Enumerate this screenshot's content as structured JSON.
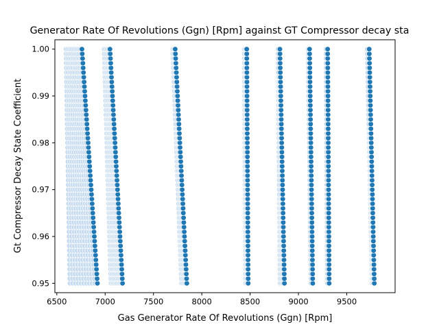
{
  "chart_data": {
    "type": "scatter",
    "title": "Generator Rate Of Revolutions (Ggn) [Rpm] against GT Compressor decay sta",
    "xlabel": "Gas Generator Rate Of Revolutions (Ggn) [Rpm]",
    "ylabel": "Gt Compressor Decay State Coefficient",
    "xlim": [
      6480,
      10000
    ],
    "ylim": [
      0.948,
      1.002
    ],
    "xticks": [
      6500,
      7000,
      7500,
      8000,
      8500,
      9000,
      9500
    ],
    "yticks": [
      0.95,
      0.96,
      0.97,
      0.98,
      0.99,
      1.0
    ],
    "ytick_labels": [
      "0.95",
      "0.96",
      "0.97",
      "0.98",
      "0.99",
      "1.00"
    ],
    "grid": false,
    "marker_color": "#1f77b4",
    "marker_edge_color": "#ffffff",
    "y_step": 0.001,
    "clusters": [
      {
        "x_at_top_min": 6595,
        "x_at_top_max": 6760,
        "x_at_bottom_min": 6635,
        "x_at_bottom_max": 6920
      },
      {
        "x_at_top_min": 6990,
        "x_at_top_max": 7050,
        "x_at_bottom_min": 7060,
        "x_at_bottom_max": 7180
      },
      {
        "x_at_top_min": 7700,
        "x_at_top_max": 7725,
        "x_at_bottom_min": 7790,
        "x_at_bottom_max": 7845
      },
      {
        "x_at_top_min": 8440,
        "x_at_top_max": 8465,
        "x_at_bottom_min": 8455,
        "x_at_bottom_max": 8480
      },
      {
        "x_at_top_min": 8790,
        "x_at_top_max": 8808,
        "x_at_bottom_min": 8810,
        "x_at_bottom_max": 8855
      },
      {
        "x_at_top_min": 9100,
        "x_at_top_max": 9115,
        "x_at_bottom_min": 9130,
        "x_at_bottom_max": 9148
      },
      {
        "x_at_top_min": 9285,
        "x_at_top_max": 9302,
        "x_at_bottom_min": 9300,
        "x_at_bottom_max": 9318
      },
      {
        "x_at_top_min": 9712,
        "x_at_top_max": 9732,
        "x_at_bottom_min": 9762,
        "x_at_bottom_max": 9785
      }
    ]
  }
}
